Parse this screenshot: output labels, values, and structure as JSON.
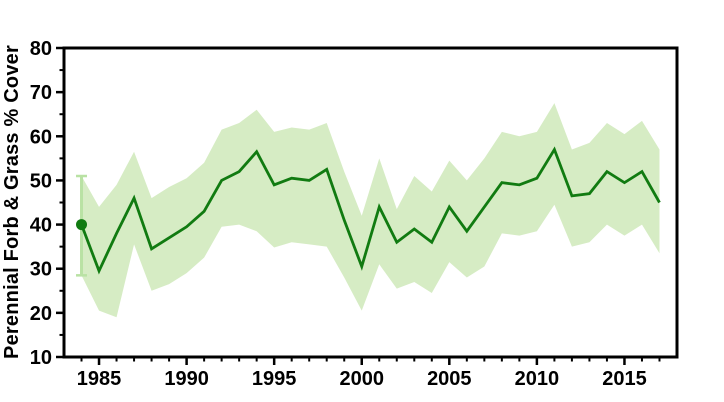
{
  "figure": {
    "background": "#ffffff"
  },
  "chart_data": {
    "type": "line",
    "title": "",
    "xlabel": "",
    "ylabel": "Perennial Forb & Grass % Cover",
    "xlim": [
      1983,
      2018
    ],
    "ylim": [
      10,
      80
    ],
    "grid": false,
    "legend": "none",
    "x_major_ticks": [
      1985,
      1990,
      1995,
      2000,
      2005,
      2010,
      2015
    ],
    "y_major_ticks": [
      10,
      20,
      30,
      40,
      50,
      60,
      70,
      80
    ],
    "x_minor_tick_interval_years": 1,
    "y_minor_tick_interval": 5,
    "years": [
      1984,
      1985,
      1986,
      1987,
      1988,
      1989,
      1990,
      1991,
      1992,
      1993,
      1994,
      1995,
      1996,
      1997,
      1998,
      1999,
      2000,
      2001,
      2002,
      2003,
      2004,
      2005,
      2006,
      2007,
      2008,
      2009,
      2010,
      2011,
      2012,
      2013,
      2014,
      2015,
      2016,
      2017
    ],
    "series": [
      {
        "name": "mean-percent-cover",
        "values": [
          40,
          29.5,
          38,
          46,
          34.5,
          37,
          39.5,
          43,
          50,
          52,
          56.5,
          49,
          50.5,
          50,
          52.5,
          41,
          30.5,
          44,
          36,
          39,
          36,
          44,
          38.5,
          44,
          49.5,
          49,
          50.5,
          57,
          46.5,
          47,
          52,
          49.5,
          52,
          45
        ]
      },
      {
        "name": "confidence-band-upper",
        "values": [
          51,
          44,
          49,
          56.5,
          46,
          48.5,
          50.5,
          54,
          61.5,
          63,
          66,
          61,
          62,
          61.5,
          63,
          52,
          42,
          55,
          43.5,
          51,
          47.5,
          54.5,
          50,
          55,
          61,
          60,
          61,
          67.5,
          57,
          58.5,
          63,
          60.5,
          63.5,
          57
        ]
      },
      {
        "name": "confidence-band-lower",
        "values": [
          28.5,
          20.5,
          19,
          35.5,
          25,
          26.5,
          29,
          32.5,
          39.5,
          40,
          38.5,
          34.8,
          36,
          35.5,
          35,
          28,
          20.5,
          31,
          25.5,
          27,
          24.5,
          31.5,
          28,
          30.5,
          38,
          37.5,
          38.5,
          44.5,
          35,
          36,
          40,
          37.5,
          40,
          33.5
        ]
      }
    ],
    "first_point": {
      "year": 1984,
      "value": 40,
      "ci_upper": 51,
      "ci_lower": 28.5
    },
    "colors": {
      "line": "#117b11",
      "band": "#d6ecc4",
      "error_bar": "#b9e2a4",
      "axis": "#000000"
    }
  }
}
